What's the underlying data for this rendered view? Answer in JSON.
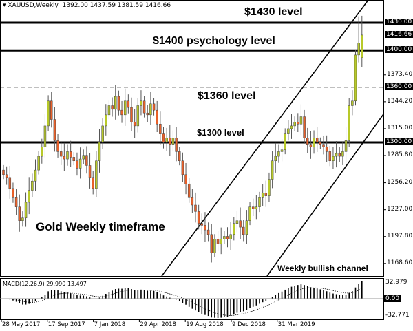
{
  "header": {
    "symbol": "XAUUSD,Weekly",
    "ohlc": "1392.00 1437.59 1381.59 1416.66"
  },
  "annotations": {
    "l1430": "$1430 level",
    "l1400": "$1400 psychology level",
    "l1360": "$1360 level",
    "l1300": "$1300 level",
    "timeframe": "Gold Weekly timeframe",
    "channel": "Weekly bullish channel"
  },
  "price_axis": {
    "ticks": [
      "1373.40",
      "1344.20",
      "1315.00",
      "1285.80",
      "1256.20",
      "1227.00",
      "1197.80",
      "1168.60"
    ],
    "tick_values": [
      1373.4,
      1344.2,
      1315.0,
      1285.8,
      1256.2,
      1227.0,
      1197.8,
      1168.6
    ],
    "marked": [
      {
        "label": "1430.00",
        "value": 1430
      },
      {
        "label": "1416.66",
        "value": 1416.66
      },
      {
        "label": "1400.00",
        "value": 1400
      },
      {
        "label": "1360.00",
        "value": 1360
      },
      {
        "label": "1300.00",
        "value": 1300
      }
    ]
  },
  "time_axis": [
    "28 May 2017",
    "17 Sep 2017",
    "7 Jan 2018",
    "29 Apr 2018",
    "19 Aug 2018",
    "9 Dec 2018",
    "31 Mar 2019"
  ],
  "macd": {
    "label": "MACD(12,26,9) 29.990 13.497",
    "max_label": "32.979",
    "zero_label": "0.00",
    "min_label": "-32.771",
    "max": 32.979,
    "min": -32.771
  },
  "colors": {
    "bull": "#b8c92a",
    "bear": "#e8602a",
    "line": "#000000"
  },
  "chart_data": {
    "type": "candlestick",
    "levels": [
      1430,
      1400,
      1360,
      1300
    ],
    "closes": [
      1265,
      1262,
      1250,
      1240,
      1230,
      1215,
      1218,
      1235,
      1248,
      1258,
      1270,
      1285,
      1295,
      1318,
      1345,
      1325,
      1302,
      1290,
      1285,
      1282,
      1290,
      1284,
      1280,
      1272,
      1282,
      1286,
      1275,
      1262,
      1250,
      1280,
      1300,
      1318,
      1330,
      1340,
      1336,
      1350,
      1335,
      1330,
      1345,
      1338,
      1322,
      1318,
      1340,
      1345,
      1332,
      1330,
      1342,
      1335,
      1320,
      1310,
      1300,
      1305,
      1298,
      1305,
      1290,
      1280,
      1265,
      1255,
      1240,
      1232,
      1225,
      1212,
      1210,
      1205,
      1200,
      1180,
      1195,
      1190,
      1195,
      1198,
      1195,
      1200,
      1212,
      1215,
      1208,
      1200,
      1215,
      1230,
      1228,
      1230,
      1240,
      1245,
      1242,
      1260,
      1280,
      1285,
      1290,
      1292,
      1310,
      1315,
      1318,
      1322,
      1320,
      1328,
      1305,
      1298,
      1295,
      1305,
      1300,
      1298,
      1295,
      1290,
      1280,
      1285,
      1288,
      1285,
      1290,
      1302,
      1340,
      1345,
      1395,
      1408,
      1416.66
    ],
    "last": {
      "open": 1392.0,
      "high": 1437.59,
      "low": 1381.59,
      "close": 1416.66
    }
  }
}
